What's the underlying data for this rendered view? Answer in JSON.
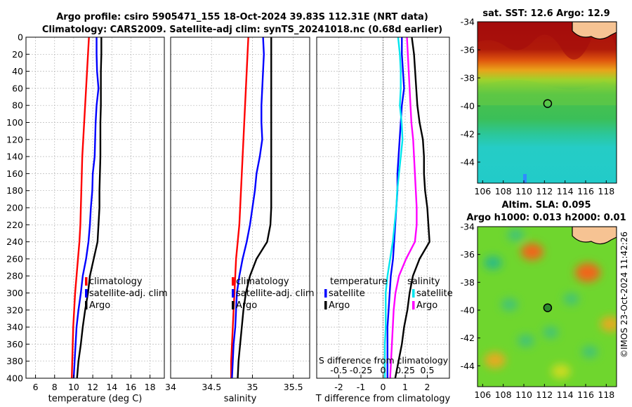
{
  "header": {
    "title_line1": "Argo profile: csiro 5905471_155 18-Oct-2024 39.83S 112.31E (NRT data)",
    "title_line2": "Climatology: CARS2009. Satellite-adj clim: synTS_20241018.nc (0.68d earlier)"
  },
  "credit": "©IMOS 23-Oct-2024 11:42:26",
  "colors": {
    "climatology": "#ff0000",
    "satellite": "#0000ff",
    "argo": "#000000",
    "salinity_clim": "#ff00ff",
    "salinity_sat": "#00e5ee",
    "grid": "#b8b8b8"
  },
  "chart_data": [
    {
      "id": "temperature",
      "type": "line",
      "xlabel": "temperature (deg C)",
      "ylabel": "",
      "xlim": [
        5,
        19.5
      ],
      "ylim": [
        400,
        0
      ],
      "xticks": [
        6,
        8,
        10,
        12,
        14,
        16,
        18
      ],
      "yticks": [
        0,
        20,
        40,
        60,
        80,
        100,
        120,
        140,
        160,
        180,
        200,
        220,
        240,
        260,
        280,
        300,
        320,
        340,
        360,
        380,
        400
      ],
      "grid": true,
      "legend": [
        "climatology",
        "satellite-adj. clim",
        "Argo"
      ],
      "series": [
        {
          "name": "climatology",
          "color": "#ff0000",
          "depth": [
            0,
            20,
            40,
            60,
            80,
            100,
            120,
            140,
            160,
            180,
            200,
            220,
            240,
            260,
            280,
            300,
            320,
            340,
            360,
            380,
            400
          ],
          "values": [
            11.6,
            11.5,
            11.4,
            11.3,
            11.2,
            11.1,
            11.0,
            10.9,
            10.85,
            10.8,
            10.75,
            10.7,
            10.6,
            10.45,
            10.3,
            10.15,
            10.05,
            9.95,
            9.9,
            9.85,
            9.8
          ]
        },
        {
          "name": "satellite-adj. clim",
          "color": "#0000ff",
          "depth": [
            0,
            20,
            40,
            60,
            80,
            100,
            120,
            140,
            160,
            180,
            200,
            220,
            240,
            260,
            280,
            300,
            320,
            340,
            360,
            380,
            400
          ],
          "values": [
            12.4,
            12.4,
            12.45,
            12.6,
            12.4,
            12.3,
            12.25,
            12.2,
            12.0,
            11.95,
            11.8,
            11.7,
            11.55,
            11.3,
            10.95,
            10.75,
            10.5,
            10.3,
            10.2,
            10.1,
            10.0
          ]
        },
        {
          "name": "Argo",
          "color": "#000000",
          "depth": [
            0,
            20,
            40,
            60,
            80,
            100,
            120,
            140,
            160,
            180,
            200,
            220,
            240,
            260,
            280,
            300,
            320,
            340,
            360,
            380,
            400
          ],
          "values": [
            12.9,
            12.9,
            12.85,
            12.85,
            12.85,
            12.8,
            12.8,
            12.8,
            12.75,
            12.7,
            12.7,
            12.6,
            12.5,
            12.1,
            11.7,
            11.5,
            11.2,
            10.95,
            10.75,
            10.5,
            10.35
          ]
        }
      ]
    },
    {
      "id": "salinity",
      "type": "line",
      "xlabel": "salinity",
      "xlim": [
        34,
        35.7
      ],
      "ylim": [
        400,
        0
      ],
      "xticks": [
        34,
        34.5,
        35,
        35.5
      ],
      "xticklabels": [
        "34",
        "34.5",
        "35",
        "35.5"
      ],
      "grid": true,
      "legend": [
        "climatology",
        "satellite-adj. clim",
        "Argo"
      ],
      "series": [
        {
          "name": "climatology",
          "color": "#ff0000",
          "depth": [
            0,
            20,
            40,
            60,
            80,
            100,
            120,
            140,
            160,
            180,
            200,
            220,
            240,
            260,
            280,
            300,
            320,
            340,
            360,
            380,
            400
          ],
          "values": [
            34.95,
            34.94,
            34.93,
            34.92,
            34.91,
            34.9,
            34.89,
            34.88,
            34.87,
            34.86,
            34.85,
            34.84,
            34.82,
            34.8,
            34.79,
            34.78,
            34.77,
            34.76,
            34.75,
            34.74,
            34.74
          ]
        },
        {
          "name": "satellite-adj. clim",
          "color": "#0000ff",
          "depth": [
            0,
            20,
            40,
            60,
            80,
            100,
            120,
            140,
            160,
            180,
            200,
            220,
            240,
            260,
            280,
            300,
            320,
            340,
            360,
            380,
            400
          ],
          "values": [
            35.13,
            35.14,
            35.13,
            35.12,
            35.11,
            35.11,
            35.12,
            35.09,
            35.05,
            35.03,
            35.0,
            34.97,
            34.93,
            34.88,
            34.84,
            34.81,
            34.8,
            34.79,
            34.77,
            34.76,
            34.75
          ]
        },
        {
          "name": "Argo",
          "color": "#000000",
          "depth": [
            0,
            20,
            40,
            60,
            80,
            100,
            120,
            140,
            160,
            180,
            200,
            220,
            240,
            260,
            280,
            300,
            320,
            340,
            360,
            380,
            400
          ],
          "values": [
            35.23,
            35.23,
            35.23,
            35.23,
            35.23,
            35.23,
            35.23,
            35.23,
            35.23,
            35.23,
            35.23,
            35.22,
            35.18,
            35.05,
            34.97,
            34.92,
            34.89,
            34.87,
            34.85,
            34.83,
            34.82
          ]
        }
      ]
    },
    {
      "id": "difference",
      "type": "line",
      "xlabel": "T difference from climatology",
      "xlabel2": "S difference from climatology",
      "xlim": [
        -3,
        3
      ],
      "ylim": [
        400,
        0
      ],
      "xticks": [
        -2,
        -1,
        0,
        1,
        2
      ],
      "xticklabels": [
        "-2",
        "-1",
        "0",
        "1",
        "2"
      ],
      "s_xticks": [
        -0.5,
        -0.25,
        0,
        0.25,
        0.5
      ],
      "s_xticklabels": [
        "-0.5",
        "-0.25",
        "0",
        "0.25",
        "0.5"
      ],
      "grid": true,
      "legend_left_title": "temperature",
      "legend_left": [
        "satellite",
        "Argo"
      ],
      "legend_right_title": "salinity",
      "legend_right": [
        "satellite",
        "Argo"
      ],
      "series": [
        {
          "name": "T satellite",
          "color": "#0000ff",
          "depth": [
            0,
            20,
            40,
            60,
            80,
            100,
            120,
            140,
            160,
            180,
            200,
            220,
            240,
            260,
            280,
            300,
            320,
            340,
            360,
            380,
            400
          ],
          "values": [
            0.85,
            0.85,
            0.9,
            0.95,
            0.85,
            0.8,
            0.75,
            0.7,
            0.65,
            0.65,
            0.6,
            0.55,
            0.5,
            0.45,
            0.35,
            0.3,
            0.25,
            0.2,
            0.2,
            0.2,
            0.2
          ]
        },
        {
          "name": "T Argo",
          "color": "#000000",
          "depth": [
            0,
            20,
            40,
            60,
            80,
            100,
            120,
            140,
            160,
            180,
            200,
            220,
            240,
            260,
            280,
            300,
            320,
            340,
            360,
            380,
            400
          ],
          "values": [
            1.3,
            1.4,
            1.45,
            1.5,
            1.55,
            1.65,
            1.8,
            1.85,
            1.85,
            1.9,
            2.0,
            2.05,
            2.1,
            1.65,
            1.35,
            1.2,
            1.1,
            0.95,
            0.85,
            0.7,
            0.55
          ]
        },
        {
          "name": "S satellite",
          "color": "#00e5ee",
          "depth": [
            0,
            20,
            40,
            60,
            80,
            100,
            120,
            140,
            160,
            180,
            200,
            220,
            240,
            260,
            280,
            300,
            320,
            340,
            360,
            380,
            400
          ],
          "values": [
            0.17,
            0.19,
            0.2,
            0.2,
            0.19,
            0.21,
            0.22,
            0.2,
            0.18,
            0.16,
            0.15,
            0.13,
            0.11,
            0.08,
            0.05,
            0.03,
            0.03,
            0.03,
            0.02,
            0.02,
            0.02
          ]
        },
        {
          "name": "S Argo",
          "color": "#ff00ff",
          "depth": [
            0,
            20,
            40,
            60,
            80,
            100,
            120,
            140,
            160,
            180,
            200,
            220,
            240,
            260,
            280,
            300,
            320,
            340,
            360,
            380,
            400
          ],
          "values": [
            0.27,
            0.28,
            0.29,
            0.3,
            0.31,
            0.32,
            0.34,
            0.35,
            0.36,
            0.37,
            0.38,
            0.38,
            0.36,
            0.26,
            0.18,
            0.14,
            0.12,
            0.11,
            0.1,
            0.09,
            0.08
          ]
        }
      ]
    },
    {
      "id": "sst_map",
      "type": "heatmap",
      "title": "sat. SST: 12.6 Argo: 12.9",
      "xlim": [
        105.5,
        119
      ],
      "ylim": [
        -45.5,
        -34
      ],
      "xticks": [
        106,
        108,
        110,
        112,
        114,
        116,
        118
      ],
      "yticks": [
        -34,
        -36,
        -38,
        -40,
        -42,
        -44
      ],
      "marker": {
        "lon": 112.31,
        "lat": -39.83,
        "value": 12.9
      },
      "value_range": [
        10,
        17
      ],
      "bands": [
        {
          "lat_from": -34,
          "lat_to": -36.5,
          "value": 16.8
        },
        {
          "lat_from": -36.5,
          "lat_to": -38,
          "value": 15.2
        },
        {
          "lat_from": -38,
          "lat_to": -40.8,
          "value": 12.6
        },
        {
          "lat_from": -40.8,
          "lat_to": -42,
          "value": 11.9
        },
        {
          "lat_from": -42,
          "lat_to": -45.5,
          "value": 10.6
        }
      ]
    },
    {
      "id": "sla_map",
      "type": "heatmap",
      "title": "Altim. SLA: 0.095",
      "subtitle": "Argo h1000: 0.013 h2000: 0.01",
      "xlim": [
        105.5,
        119
      ],
      "ylim": [
        -45.5,
        -34
      ],
      "xticks": [
        106,
        108,
        110,
        112,
        114,
        116,
        118
      ],
      "yticks": [
        -34,
        -36,
        -38,
        -40,
        -42,
        -44
      ],
      "marker": {
        "lon": 112.31,
        "lat": -39.83,
        "value": 0.013
      },
      "blobs": [
        {
          "lon": 116.2,
          "lat": -37.3,
          "value": 0.25
        },
        {
          "lon": 110.8,
          "lat": -35.8,
          "value": 0.2
        },
        {
          "lon": 107.2,
          "lat": -43.6,
          "value": 0.18
        },
        {
          "lon": 118.4,
          "lat": -41.0,
          "value": 0.16
        },
        {
          "lon": 113.6,
          "lat": -44.4,
          "value": 0.14
        },
        {
          "lon": 109.2,
          "lat": -34.6,
          "value": -0.1
        },
        {
          "lon": 107.0,
          "lat": -36.6,
          "value": -0.12
        },
        {
          "lon": 108.6,
          "lat": -39.6,
          "value": -0.1
        },
        {
          "lon": 114.6,
          "lat": -39.2,
          "value": -0.08
        },
        {
          "lon": 110.2,
          "lat": -42.2,
          "value": -0.1
        },
        {
          "lon": 116.4,
          "lat": -43.0,
          "value": -0.09
        },
        {
          "lon": 112.6,
          "lat": -41.6,
          "value": -0.08
        }
      ]
    }
  ]
}
